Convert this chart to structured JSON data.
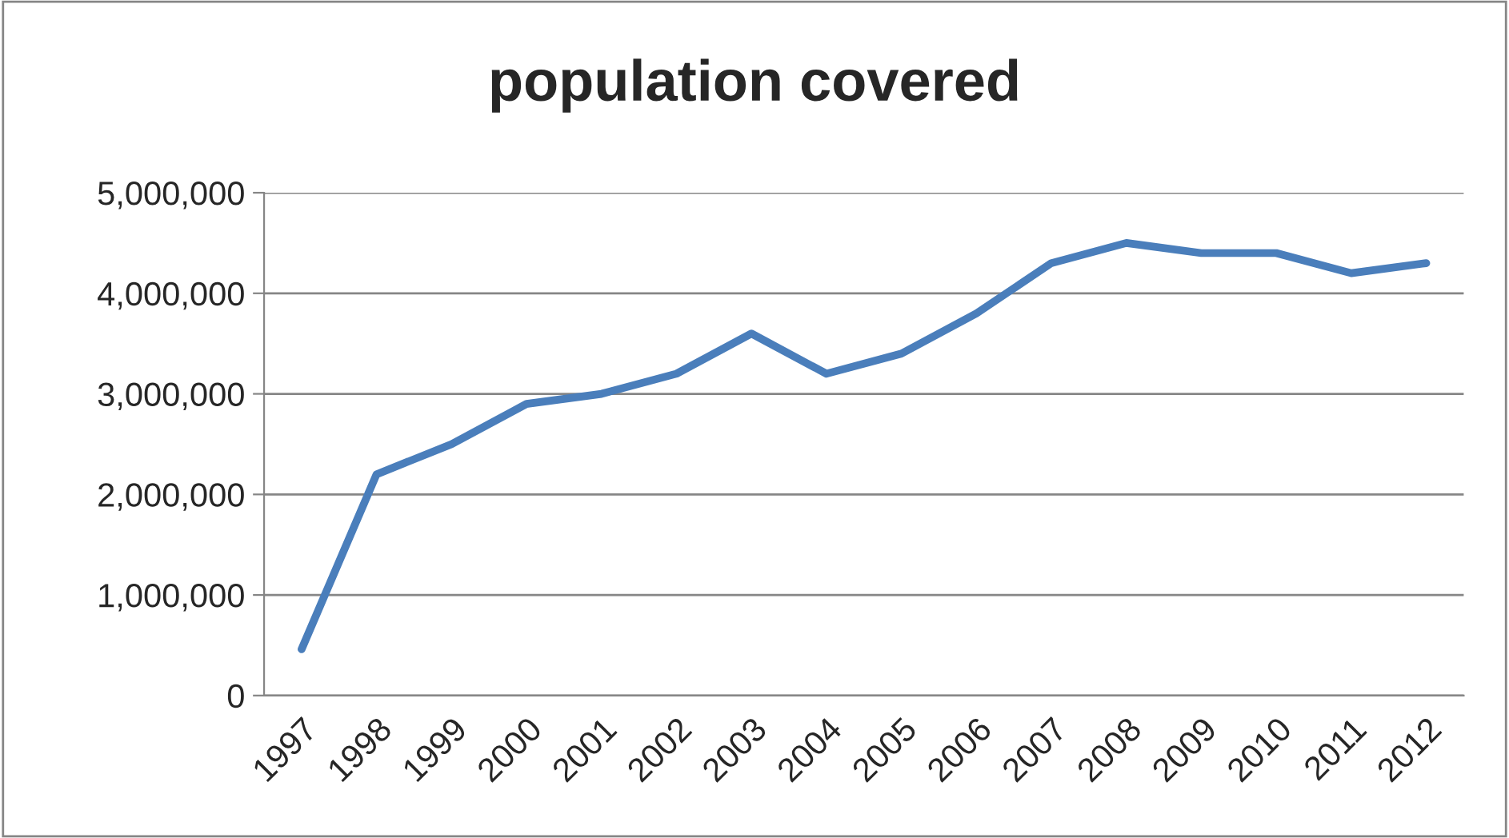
{
  "chart_data": {
    "type": "line",
    "title": "population covered",
    "categories": [
      "1997",
      "1998",
      "1999",
      "2000",
      "2001",
      "2002",
      "2003",
      "2004",
      "2005",
      "2006",
      "2007",
      "2008",
      "2009",
      "2010",
      "2011",
      "2012"
    ],
    "series": [
      {
        "color": "#4a7ebb",
        "values": [
          460000,
          2200000,
          2500000,
          2900000,
          3000000,
          3200000,
          3600000,
          3200000,
          3400000,
          3800000,
          4300000,
          4500000,
          4400000,
          4400000,
          4200000,
          4300000
        ]
      }
    ],
    "ylim": [
      0,
      5000000
    ],
    "yticks": [
      0,
      {
        "value": 1000000,
        "label": "1,000,000"
      },
      {
        "value": 2000000,
        "label": "2,000,000"
      },
      {
        "value": 3000000,
        "label": "3,000,000"
      },
      {
        "value": 4000000,
        "label": "4,000,000"
      },
      {
        "value": 5000000,
        "label": "5,000,000"
      }
    ],
    "grid": "y",
    "legend": false,
    "marker": "none",
    "line_style": "solid"
  }
}
